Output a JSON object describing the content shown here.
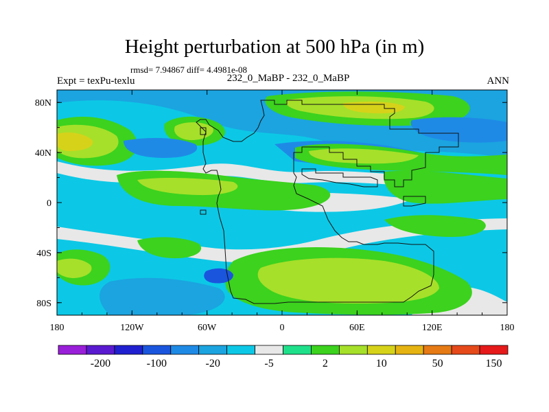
{
  "header": {
    "title": "Height perturbation at 500 hPa (in m)",
    "stats": "rmsd= 7.94867 diff= 4.4981e-08",
    "experiment": "Expt = texPu-texlu",
    "case": "232_0_MaBP - 232_0_MaBP",
    "season": "ANN"
  },
  "colors": {
    "levels": [
      "#9a1fd9",
      "#5a1ad0",
      "#2020d0",
      "#1a55de",
      "#1f8ae6",
      "#1ba4e0",
      "#0cc8e6",
      "#e8e8e8",
      "#1fe08a",
      "#3cd21e",
      "#a6e02a",
      "#d6d21a",
      "#e6b412",
      "#e67a14",
      "#e64a1a",
      "#e61a1a"
    ]
  },
  "chart_data": {
    "type": "filled-contour",
    "title": "Height perturbation at 500 hPa (in m)",
    "xlabel": "",
    "ylabel": "",
    "xlim": [
      -180,
      180
    ],
    "ylim": [
      -90,
      90
    ],
    "x_ticks": [
      -180,
      -120,
      -60,
      0,
      60,
      120,
      180
    ],
    "x_tick_labels": [
      "180",
      "120W",
      "60W",
      "0",
      "60E",
      "120E",
      "180"
    ],
    "y_ticks": [
      80,
      40,
      0,
      -40,
      -80
    ],
    "y_tick_labels": [
      "80N",
      "40N",
      "0",
      "40S",
      "80S"
    ],
    "colorbar_labels": [
      "-200",
      "-100",
      "-20",
      "-5",
      "2",
      "10",
      "50",
      "150"
    ],
    "colorbar_bins": 16,
    "regions": [
      {
        "name": "positive-north-pacific",
        "lon": -170,
        "lat": 52,
        "level": 11
      },
      {
        "name": "positive-north-atlantic",
        "lon": 77,
        "lat": 76,
        "level": 11
      },
      {
        "name": "positive-south-atlantic",
        "lon": 30,
        "lat": -55,
        "level": 10
      },
      {
        "name": "negative-southeast-pacific",
        "lon": -55,
        "lat": -58,
        "level": 3
      },
      {
        "name": "near-zero-equator",
        "lon": 20,
        "lat": 0,
        "level": 7
      }
    ]
  }
}
